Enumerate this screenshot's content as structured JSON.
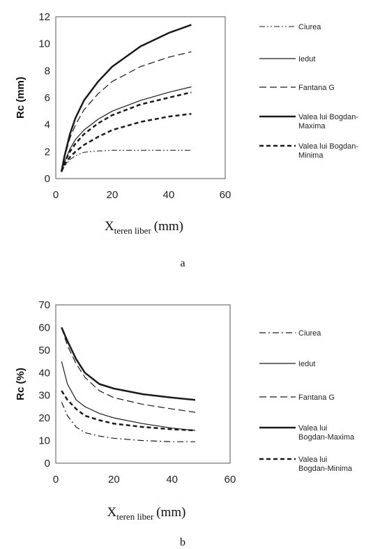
{
  "chart_data": [
    {
      "type": "line",
      "ylabel": "Rc (mm)",
      "xlabel_main": "X",
      "xlabel_sub": "teren liber",
      "xlabel_unit": "(mm)",
      "caption": "a",
      "xlim": [
        0,
        60
      ],
      "ylim": [
        0,
        12
      ],
      "x_ticks": [
        "0",
        "20",
        "40",
        "60"
      ],
      "y_ticks": [
        "0",
        "2",
        "4",
        "6",
        "8",
        "10",
        "12"
      ],
      "legend_position": "right",
      "legend": [
        {
          "lines": [
            "Ciurea"
          ]
        },
        {
          "lines": [
            "Iedut"
          ]
        },
        {
          "lines": [
            "Fantana G"
          ]
        },
        {
          "lines": [
            "Valea lui Bogdan-",
            "Maxima"
          ]
        },
        {
          "lines": [
            "Valea lui Bogdan-",
            "Minima"
          ]
        }
      ],
      "series": [
        {
          "name": "Ciurea",
          "style": "dashdotdot",
          "width": 1,
          "x": [
            2,
            3,
            5,
            7,
            10,
            15,
            20,
            30,
            40,
            48
          ],
          "y": [
            0.5,
            0.9,
            1.4,
            1.7,
            1.95,
            2.05,
            2.1,
            2.1,
            2.1,
            2.1
          ]
        },
        {
          "name": "Iedut",
          "style": "solid",
          "width": 1.2,
          "x": [
            2,
            3,
            5,
            7,
            10,
            15,
            20,
            30,
            40,
            48
          ],
          "y": [
            0.5,
            1.2,
            2.2,
            2.9,
            3.6,
            4.4,
            5.0,
            5.8,
            6.4,
            6.8
          ]
        },
        {
          "name": "Fantana G",
          "style": "dashed",
          "width": 1.2,
          "x": [
            2,
            3,
            5,
            7,
            10,
            15,
            20,
            30,
            40,
            48
          ],
          "y": [
            0.5,
            1.5,
            3.0,
            4.0,
            5.1,
            6.3,
            7.2,
            8.3,
            9.0,
            9.4
          ]
        },
        {
          "name": "Valea lui Bogdan-Maxima",
          "style": "solid",
          "width": 2.5,
          "x": [
            2,
            3,
            5,
            7,
            10,
            15,
            20,
            30,
            40,
            48
          ],
          "y": [
            0.5,
            1.6,
            3.3,
            4.5,
            5.8,
            7.2,
            8.3,
            9.8,
            10.8,
            11.4
          ]
        },
        {
          "name": "Valea lui Bogdan-Minima",
          "style": "bolddash",
          "width": 2.5,
          "x": [
            2,
            3,
            5,
            7,
            10,
            15,
            20,
            30,
            40,
            48
          ],
          "y": [
            0.5,
            1.0,
            1.6,
            2.0,
            2.5,
            3.1,
            3.6,
            4.2,
            4.6,
            4.8
          ]
        },
        {
          "name": "Valea lui Bogdan-Minima (2)",
          "style": "bolddash",
          "width": 2.5,
          "x": [
            2,
            3,
            5,
            7,
            10,
            15,
            20,
            30,
            40,
            48
          ],
          "y": [
            0.5,
            1.2,
            2.0,
            2.6,
            3.3,
            4.1,
            4.7,
            5.5,
            6.0,
            6.4
          ]
        }
      ]
    },
    {
      "type": "line",
      "ylabel": "Rc (%)",
      "xlabel_main": "X",
      "xlabel_sub": "teren liber",
      "xlabel_unit": "(mm)",
      "caption": "b",
      "xlim": [
        0,
        60
      ],
      "ylim": [
        0,
        70
      ],
      "x_ticks": [
        "0",
        "20",
        "40",
        "60"
      ],
      "y_ticks": [
        "0",
        "10",
        "20",
        "30",
        "40",
        "50",
        "60",
        "70"
      ],
      "legend_position": "right",
      "legend": [
        {
          "lines": [
            "Ciurea"
          ]
        },
        {
          "lines": [
            "Iedut"
          ]
        },
        {
          "lines": [
            "Fantana G"
          ]
        },
        {
          "lines": [
            "Valea lui",
            "Bogdan-Maxima"
          ]
        },
        {
          "lines": [
            "Valea lui",
            "Bogdan-Minima"
          ]
        }
      ],
      "series": [
        {
          "name": "Ciurea",
          "style": "dashdot",
          "width": 1.2,
          "x": [
            2,
            4,
            7,
            10,
            15,
            20,
            30,
            40,
            48
          ],
          "y": [
            27,
            21,
            16,
            13.5,
            12,
            11,
            10,
            9.5,
            9.5
          ]
        },
        {
          "name": "Iedut",
          "style": "solid",
          "width": 1.2,
          "x": [
            2,
            4,
            7,
            10,
            15,
            20,
            30,
            40,
            48
          ],
          "y": [
            45,
            35,
            28,
            25,
            22,
            20,
            17.5,
            15.5,
            14.5
          ]
        },
        {
          "name": "Fantana G",
          "style": "dashed",
          "width": 1.2,
          "x": [
            2,
            4,
            7,
            10,
            15,
            20,
            30,
            40,
            48
          ],
          "y": [
            60,
            52,
            44,
            38,
            32,
            29,
            26,
            24,
            22.5
          ]
        },
        {
          "name": "Valea lui Bogdan-Maxima",
          "style": "solid",
          "width": 2.5,
          "x": [
            2,
            4,
            7,
            10,
            15,
            20,
            30,
            40,
            48
          ],
          "y": [
            60,
            54,
            46,
            40,
            35,
            33,
            30.5,
            29,
            28
          ]
        },
        {
          "name": "Valea lui Bogdan-Minima",
          "style": "bolddash",
          "width": 2.5,
          "x": [
            2,
            4,
            7,
            10,
            15,
            20,
            30,
            40,
            48
          ],
          "y": [
            32,
            28,
            24,
            21,
            19,
            17.5,
            16,
            15,
            14.5
          ]
        }
      ]
    }
  ]
}
